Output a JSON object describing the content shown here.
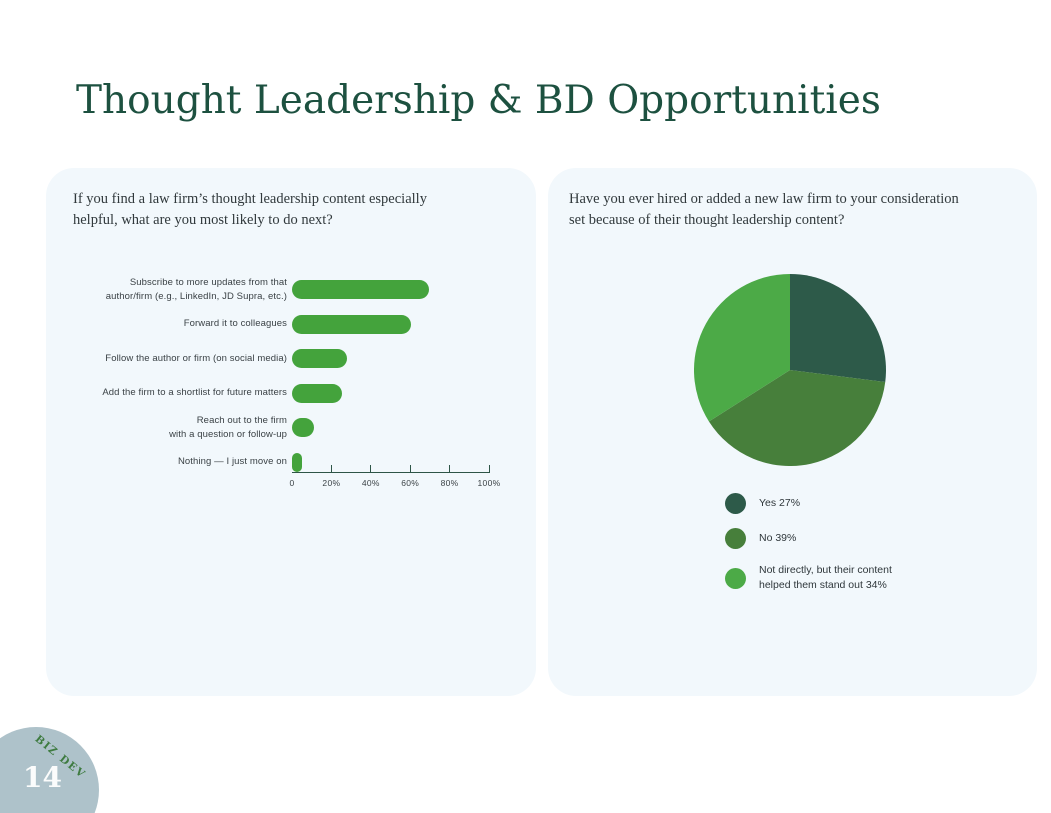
{
  "page": {
    "title": "Thought Leadership & BD Opportunities",
    "page_number": "14",
    "tab_label": "BIZ DEV"
  },
  "theme": {
    "title_color": "#1D5140",
    "panel_background": "#F2F8FC",
    "axis_color": "#2E5547",
    "corner_circle_color": "#AEC2CA",
    "tab_label_color": "#3E7B40"
  },
  "chart_data": [
    {
      "type": "bar",
      "orientation": "horizontal",
      "title": "If you find a law firm’s thought leadership content especially\nhelpful, what are you most likely to do next?",
      "categories": [
        "Subscribe to more updates from that\nauthor/firm (e.g., LinkedIn, JD Supra, etc.)",
        "Forward it to colleagues",
        "Follow the author or firm (on social media)",
        "Add the firm to a shortlist for future matters",
        "Reach out to the firm\nwith a question or follow-up",
        "Nothing — I just move on"
      ],
      "values": [
        69,
        60,
        28,
        25,
        11,
        5
      ],
      "xlim": [
        0,
        100
      ],
      "x_ticks": [
        {
          "value": 0,
          "label": "0"
        },
        {
          "value": 20,
          "label": "20%"
        },
        {
          "value": 40,
          "label": "40%"
        },
        {
          "value": 60,
          "label": "60%"
        },
        {
          "value": 80,
          "label": "80%"
        },
        {
          "value": 100,
          "label": "100%"
        }
      ],
      "bar_color": "#44A33C",
      "grid": false
    },
    {
      "type": "pie",
      "title": "Have you ever hired or added a new law firm to your consideration\nset because of their thought leadership content?",
      "start_angle_deg": 0,
      "direction": "clockwise",
      "legend_position": "below",
      "slices": [
        {
          "label": "Yes",
          "value": 27,
          "color": "#2D5A49",
          "legend_label": "Yes 27%"
        },
        {
          "label": "No",
          "value": 39,
          "color": "#477F3B",
          "legend_label": "No 39%"
        },
        {
          "label": "Not directly, but their content helped them stand out",
          "value": 34,
          "color": "#4CAA47",
          "legend_label": "Not directly, but their content\nhelped them stand out 34%"
        }
      ]
    }
  ]
}
